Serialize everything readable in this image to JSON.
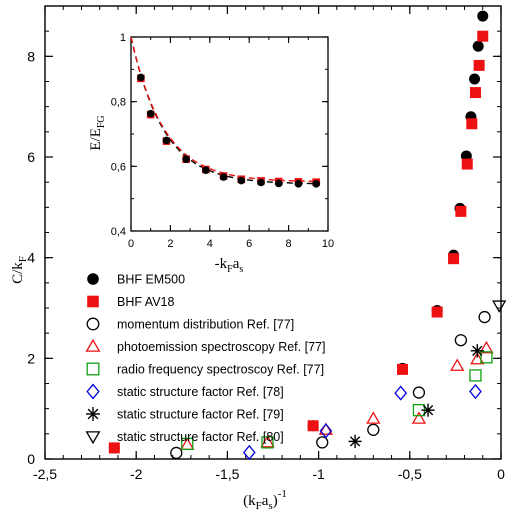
{
  "chart_data": {
    "type": "scatter",
    "xlabel": "(k",
    "xlabel_sub": "F",
    "xlabel_mid": "a",
    "xlabel_sub2": "s",
    "xlabel_tail": ")",
    "xlabel_sup": "-1",
    "ylabel": "C/k",
    "ylabel_sub": "F",
    "xlim": [
      -2.5,
      0
    ],
    "ylim": [
      0,
      9
    ],
    "x_ticks": [
      -2.5,
      -2,
      -1.5,
      -1,
      -0.5,
      0
    ],
    "x_tick_labels": [
      "-2,5",
      "-2",
      "-1,5",
      "-1",
      "-0,5",
      "0"
    ],
    "y_ticks": [
      0,
      2,
      4,
      6,
      8
    ],
    "y_tick_labels": [
      "0",
      "2",
      "4",
      "6",
      "8"
    ],
    "series": [
      {
        "name": "BHF EM500",
        "marker": "filled-circle",
        "color": "#000000",
        "x": [
          -2.12,
          -1.03,
          -0.54,
          -0.35,
          -0.26,
          -0.225,
          -0.19,
          -0.165,
          -0.145,
          -0.125,
          -0.1
        ],
        "y": [
          0.22,
          0.66,
          1.8,
          2.95,
          4.05,
          4.98,
          6.02,
          6.8,
          7.55,
          8.2,
          8.8
        ]
      },
      {
        "name": "BHF AV18",
        "marker": "filled-square",
        "color": "#ee1111",
        "x": [
          -2.12,
          -1.03,
          -0.54,
          -0.35,
          -0.26,
          -0.22,
          -0.185,
          -0.16,
          -0.14,
          -0.12,
          -0.1
        ],
        "y": [
          0.22,
          0.66,
          1.78,
          2.92,
          3.98,
          4.92,
          5.86,
          6.66,
          7.28,
          7.82,
          8.4
        ]
      },
      {
        "name": "momentum distribution Ref. [77]",
        "marker": "open-circle",
        "color": "#000000",
        "x": [
          -1.78,
          -0.98,
          -0.7,
          -0.45,
          -0.22,
          -0.09
        ],
        "y": [
          0.12,
          0.33,
          0.58,
          1.32,
          2.36,
          2.82
        ]
      },
      {
        "name": "photoemission spectroscopy Ref. [77]",
        "marker": "open-triangle",
        "color": "#ee1111",
        "x": [
          -1.72,
          -1.28,
          -0.96,
          -0.7,
          -0.45,
          -0.24,
          -0.13,
          -0.08
        ],
        "y": [
          0.28,
          0.33,
          0.58,
          0.8,
          0.8,
          1.85,
          1.98,
          2.2
        ]
      },
      {
        "name": "radio frequency spectroscoy Ref. [77]",
        "marker": "open-square",
        "color": "#11a011",
        "x": [
          -1.72,
          -1.28,
          -0.45,
          -0.14,
          -0.08
        ],
        "y": [
          0.3,
          0.33,
          0.97,
          1.66,
          2.02
        ]
      },
      {
        "name": "static structure factor Ref. [78]",
        "marker": "open-diamond",
        "color": "#0000dd",
        "x": [
          -1.38,
          -0.96,
          -0.55,
          -0.14
        ],
        "y": [
          0.13,
          0.56,
          1.31,
          1.34
        ]
      },
      {
        "name": "static structure factor Ref. [79]",
        "marker": "asterisk",
        "color": "#000000",
        "x": [
          -0.8,
          -0.4,
          -0.13
        ],
        "y": [
          0.35,
          0.97,
          2.15
        ]
      },
      {
        "name": "static structure factor Ref. [80]",
        "marker": "open-down-triangle",
        "color": "#000000",
        "x": [
          -0.01
        ],
        "y": [
          3.05
        ]
      }
    ],
    "inset": {
      "type": "scatter",
      "xlabel": "-k",
      "xlabel_sub": "F",
      "xlabel_tail": "a",
      "xlabel_sub2": "s",
      "ylabel": "E/E",
      "ylabel_sub": "FG",
      "xlim": [
        0,
        10
      ],
      "ylim": [
        0.4,
        1.0
      ],
      "x_ticks": [
        0,
        2,
        4,
        6,
        8,
        10
      ],
      "x_tick_labels": [
        "0",
        "2",
        "4",
        "6",
        "8",
        "10"
      ],
      "y_ticks": [
        0.4,
        0.6,
        0.8,
        1.0
      ],
      "y_tick_labels": [
        "0,4",
        "0,6",
        "0,8",
        "1"
      ],
      "series": [
        {
          "marker": "filled-circle",
          "color": "#000000",
          "x": [
            0.5,
            1.0,
            1.8,
            2.8,
            3.8,
            4.7,
            5.6,
            6.6,
            7.5,
            8.5,
            9.4
          ],
          "y": [
            0.875,
            0.763,
            0.68,
            0.622,
            0.588,
            0.567,
            0.556,
            0.55,
            0.547,
            0.546,
            0.546
          ]
        },
        {
          "marker": "filled-square",
          "color": "#ee1111",
          "x": [
            0.5,
            1.0,
            1.8,
            2.8,
            3.8,
            4.7,
            5.6,
            6.6,
            7.5,
            8.5,
            9.4
          ],
          "y": [
            0.872,
            0.76,
            0.678,
            0.622,
            0.59,
            0.57,
            0.56,
            0.555,
            0.553,
            0.552,
            0.551
          ]
        }
      ],
      "curves": [
        {
          "color": "#000000",
          "style": "dashed",
          "asymptote": 0.545,
          "amplitude": 0.455,
          "rate": 0.6
        },
        {
          "color": "#ee1111",
          "style": "dashed",
          "asymptote": 0.552,
          "amplitude": 0.448,
          "rate": 0.6
        }
      ]
    }
  }
}
